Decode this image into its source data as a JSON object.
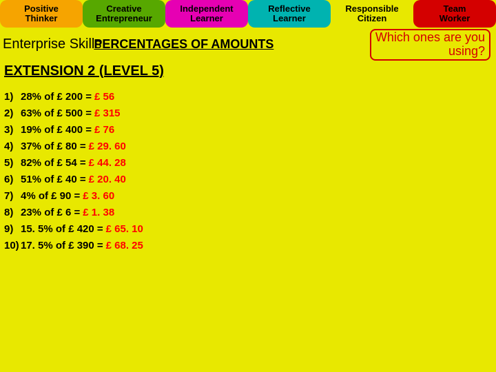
{
  "tabs": [
    {
      "line1": "Positive",
      "line2": "Thinker",
      "color": "#f6a400"
    },
    {
      "line1": "Creative",
      "line2": "Entrepreneur",
      "color": "#57a800"
    },
    {
      "line1": "Independent",
      "line2": "Learner",
      "color": "#e600b3"
    },
    {
      "line1": "Reflective",
      "line2": "Learner",
      "color": "#00b3b0"
    },
    {
      "line1": "Responsible",
      "line2": "Citizen",
      "color": "#e8e800"
    },
    {
      "line1": "Team",
      "line2": "Worker",
      "color": "#d40000"
    }
  ],
  "row2": {
    "enterprise": "Enterprise Skills",
    "title_pct": "PERCENTAGES OF AMOUNTS",
    "which1": "Which ones are you",
    "which2": "using?"
  },
  "extension": "EXTENSION 2 (LEVEL 5)",
  "problems": [
    {
      "n": "1)",
      "q": "28% of £ 200 =",
      "a": "£ 56"
    },
    {
      "n": "2)",
      "q": "63% of £ 500 =",
      "a": "£ 315"
    },
    {
      "n": "3)",
      "q": "19% of £ 400 =",
      "a": "£ 76"
    },
    {
      "n": "4)",
      "q": "37% of £ 80 =",
      "a": "£ 29. 60"
    },
    {
      "n": "5)",
      "q": "82% of £ 54 =",
      "a": "£ 44. 28"
    },
    {
      "n": "6)",
      "q": "51% of £ 40 =",
      "a": "£ 20. 40"
    },
    {
      "n": "7)",
      "q": "4% of £ 90 =",
      "a": "£ 3. 60"
    },
    {
      "n": "8)",
      "q": "23% of £ 6 =",
      "a": "£ 1. 38"
    },
    {
      "n": "9)",
      "q": "15. 5% of £ 420 =",
      "a": "£ 65. 10"
    },
    {
      "n": "10)",
      "q": "17. 5% of £ 390 =",
      "a": "£ 68. 25"
    }
  ],
  "style": {
    "page_bg": "#e8e800",
    "answer_color": "#ff0000",
    "which_border": "#d40000",
    "which_text": "#d40000",
    "text_color": "#000000",
    "tab_fontsize": 13,
    "enterprise_fontsize": 20,
    "title_fontsize": 18,
    "which_fontsize": 18,
    "ext_fontsize": 20,
    "prob_fontsize": 15
  }
}
